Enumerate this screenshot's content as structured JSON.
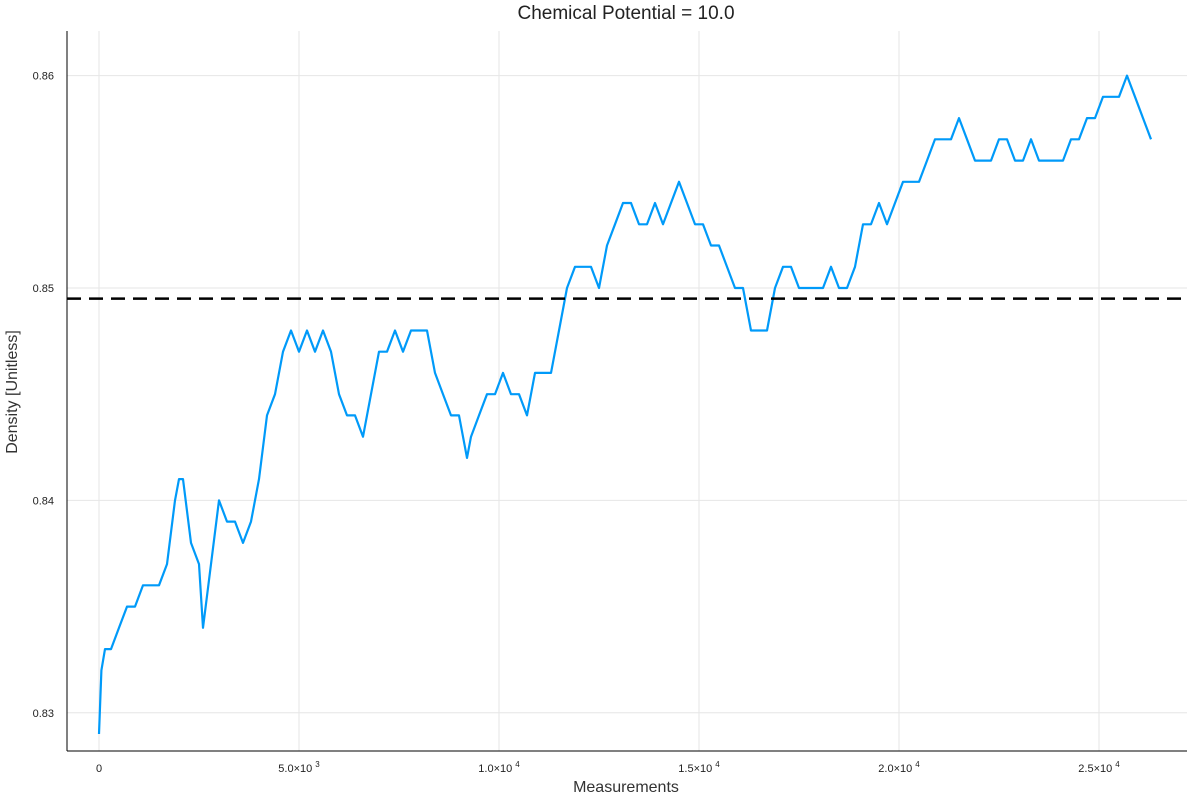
{
  "chart_data": {
    "type": "line",
    "title": "Chemical Potential = 10.0",
    "xlabel": "Measurements",
    "ylabel": "Density [Unitless]",
    "xlim": [
      -800,
      27200
    ],
    "ylim": [
      0.8282,
      0.8621
    ],
    "grid": true,
    "legend": "none",
    "x_ticks": [
      {
        "value": 0,
        "mantissa": "0",
        "exp": ""
      },
      {
        "value": 5000,
        "mantissa": "5.0×10",
        "exp": "3"
      },
      {
        "value": 10000,
        "mantissa": "1.0×10",
        "exp": "4"
      },
      {
        "value": 15000,
        "mantissa": "1.5×10",
        "exp": "4"
      },
      {
        "value": 20000,
        "mantissa": "2.0×10",
        "exp": "4"
      },
      {
        "value": 25000,
        "mantissa": "2.5×10",
        "exp": "4"
      }
    ],
    "y_ticks": [
      {
        "value": 0.83,
        "label": "0.83"
      },
      {
        "value": 0.84,
        "label": "0.84"
      },
      {
        "value": 0.85,
        "label": "0.85"
      },
      {
        "value": 0.86,
        "label": "0.86"
      }
    ],
    "reference_line": {
      "y": 0.8495,
      "style": "dashed",
      "color": "#000000"
    },
    "series": [
      {
        "color": "#009af9",
        "points": [
          [
            0,
            0.829
          ],
          [
            60,
            0.832
          ],
          [
            150,
            0.833
          ],
          [
            300,
            0.833
          ],
          [
            500,
            0.834
          ],
          [
            700,
            0.835
          ],
          [
            900,
            0.835
          ],
          [
            1100,
            0.836
          ],
          [
            1300,
            0.836
          ],
          [
            1500,
            0.836
          ],
          [
            1700,
            0.837
          ],
          [
            1900,
            0.84
          ],
          [
            2000,
            0.841
          ],
          [
            2100,
            0.841
          ],
          [
            2300,
            0.838
          ],
          [
            2500,
            0.837
          ],
          [
            2600,
            0.834
          ],
          [
            2800,
            0.837
          ],
          [
            3000,
            0.84
          ],
          [
            3200,
            0.839
          ],
          [
            3400,
            0.839
          ],
          [
            3600,
            0.838
          ],
          [
            3800,
            0.839
          ],
          [
            4000,
            0.841
          ],
          [
            4200,
            0.844
          ],
          [
            4400,
            0.845
          ],
          [
            4600,
            0.847
          ],
          [
            4800,
            0.848
          ],
          [
            5000,
            0.847
          ],
          [
            5200,
            0.848
          ],
          [
            5400,
            0.847
          ],
          [
            5600,
            0.848
          ],
          [
            5800,
            0.847
          ],
          [
            6000,
            0.845
          ],
          [
            6200,
            0.844
          ],
          [
            6400,
            0.844
          ],
          [
            6600,
            0.843
          ],
          [
            6800,
            0.845
          ],
          [
            7000,
            0.847
          ],
          [
            7200,
            0.847
          ],
          [
            7400,
            0.848
          ],
          [
            7600,
            0.847
          ],
          [
            7800,
            0.848
          ],
          [
            8000,
            0.848
          ],
          [
            8200,
            0.848
          ],
          [
            8400,
            0.846
          ],
          [
            8600,
            0.845
          ],
          [
            8800,
            0.844
          ],
          [
            9000,
            0.844
          ],
          [
            9200,
            0.842
          ],
          [
            9300,
            0.843
          ],
          [
            9500,
            0.844
          ],
          [
            9700,
            0.845
          ],
          [
            9900,
            0.845
          ],
          [
            10100,
            0.846
          ],
          [
            10300,
            0.845
          ],
          [
            10500,
            0.845
          ],
          [
            10700,
            0.844
          ],
          [
            10900,
            0.846
          ],
          [
            11100,
            0.846
          ],
          [
            11300,
            0.846
          ],
          [
            11500,
            0.848
          ],
          [
            11700,
            0.85
          ],
          [
            11900,
            0.851
          ],
          [
            12100,
            0.851
          ],
          [
            12300,
            0.851
          ],
          [
            12500,
            0.85
          ],
          [
            12700,
            0.852
          ],
          [
            12900,
            0.853
          ],
          [
            13100,
            0.854
          ],
          [
            13300,
            0.854
          ],
          [
            13500,
            0.853
          ],
          [
            13700,
            0.853
          ],
          [
            13900,
            0.854
          ],
          [
            14100,
            0.853
          ],
          [
            14300,
            0.854
          ],
          [
            14500,
            0.855
          ],
          [
            14700,
            0.854
          ],
          [
            14900,
            0.853
          ],
          [
            15100,
            0.853
          ],
          [
            15300,
            0.852
          ],
          [
            15500,
            0.852
          ],
          [
            15700,
            0.851
          ],
          [
            15900,
            0.85
          ],
          [
            16100,
            0.85
          ],
          [
            16300,
            0.848
          ],
          [
            16500,
            0.848
          ],
          [
            16700,
            0.848
          ],
          [
            16900,
            0.85
          ],
          [
            17100,
            0.851
          ],
          [
            17300,
            0.851
          ],
          [
            17500,
            0.85
          ],
          [
            17700,
            0.85
          ],
          [
            17900,
            0.85
          ],
          [
            18100,
            0.85
          ],
          [
            18300,
            0.851
          ],
          [
            18500,
            0.85
          ],
          [
            18700,
            0.85
          ],
          [
            18900,
            0.851
          ],
          [
            19100,
            0.853
          ],
          [
            19300,
            0.853
          ],
          [
            19500,
            0.854
          ],
          [
            19700,
            0.853
          ],
          [
            19900,
            0.854
          ],
          [
            20100,
            0.855
          ],
          [
            20300,
            0.855
          ],
          [
            20500,
            0.855
          ],
          [
            20700,
            0.856
          ],
          [
            20900,
            0.857
          ],
          [
            21100,
            0.857
          ],
          [
            21300,
            0.857
          ],
          [
            21500,
            0.858
          ],
          [
            21700,
            0.857
          ],
          [
            21900,
            0.856
          ],
          [
            22100,
            0.856
          ],
          [
            22300,
            0.856
          ],
          [
            22500,
            0.857
          ],
          [
            22700,
            0.857
          ],
          [
            22900,
            0.856
          ],
          [
            23100,
            0.856
          ],
          [
            23300,
            0.857
          ],
          [
            23500,
            0.856
          ],
          [
            23700,
            0.856
          ],
          [
            23900,
            0.856
          ],
          [
            24100,
            0.856
          ],
          [
            24300,
            0.857
          ],
          [
            24500,
            0.857
          ],
          [
            24700,
            0.858
          ],
          [
            24900,
            0.858
          ],
          [
            25100,
            0.859
          ],
          [
            25300,
            0.859
          ],
          [
            25500,
            0.859
          ],
          [
            25700,
            0.86
          ],
          [
            25900,
            0.859
          ],
          [
            26100,
            0.858
          ],
          [
            26300,
            0.857
          ]
        ]
      }
    ]
  }
}
